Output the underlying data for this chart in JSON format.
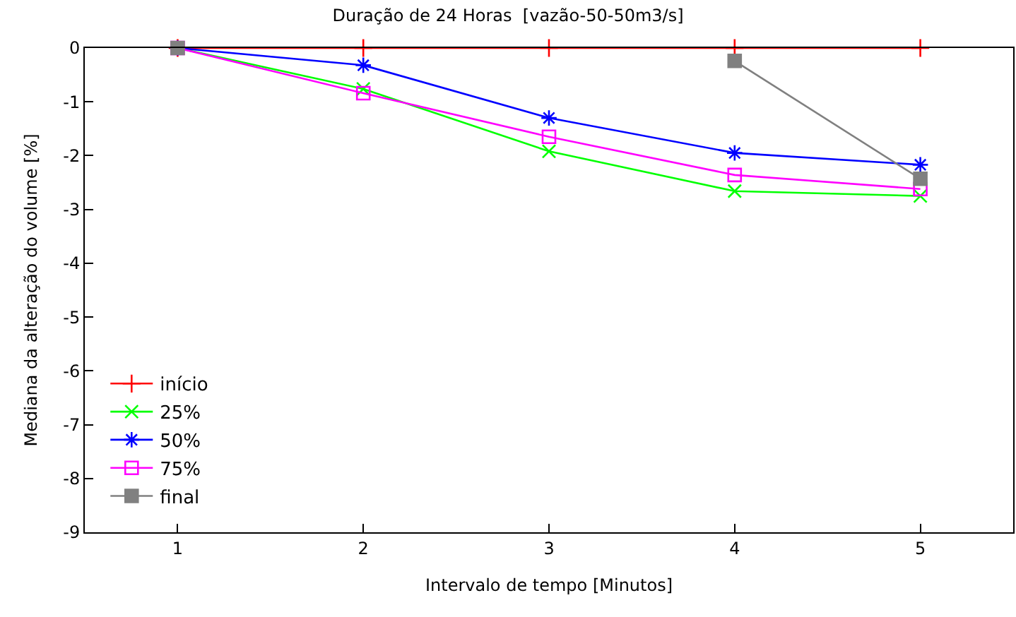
{
  "chart_data": {
    "type": "line",
    "title": "Duração de 24 Horas  [vazão-50-50m3/s]",
    "xlabel": "Intervalo de tempo [Minutos]",
    "ylabel": "Mediana da alteração do volume [%]",
    "x": [
      1,
      2,
      3,
      4,
      5
    ],
    "xlim": [
      0.5,
      5.5
    ],
    "xticks": [
      1,
      2,
      3,
      4,
      5
    ],
    "ylim": [
      -9,
      0
    ],
    "yticks": [
      -9,
      -8,
      -7,
      -6,
      -5,
      -4,
      -3,
      -2,
      -1,
      0
    ],
    "legend": "bottom left",
    "line_style": "solid",
    "series": [
      {
        "name": "início",
        "color": "#ff0000",
        "marker": "cross",
        "values": [
          0,
          0,
          0,
          0,
          0
        ]
      },
      {
        "name": "25%",
        "color": "#00ff00",
        "marker": "x",
        "values": [
          0,
          -0.76,
          -1.92,
          -2.66,
          -2.75
        ]
      },
      {
        "name": "50%",
        "color": "#0000ff",
        "marker": "cross",
        "values": [
          0,
          -0.32,
          -1.3,
          -1.95,
          -2.17
        ]
      },
      {
        "name": "75%",
        "color": "#ff00ff",
        "marker": "square-open",
        "values": [
          0,
          -0.84,
          -1.65,
          -2.36,
          -2.62
        ]
      },
      {
        "name": "final",
        "color": "#808080",
        "marker": "square",
        "values": [
          0,
          null,
          null,
          -0.24,
          -2.43
        ]
      }
    ]
  }
}
